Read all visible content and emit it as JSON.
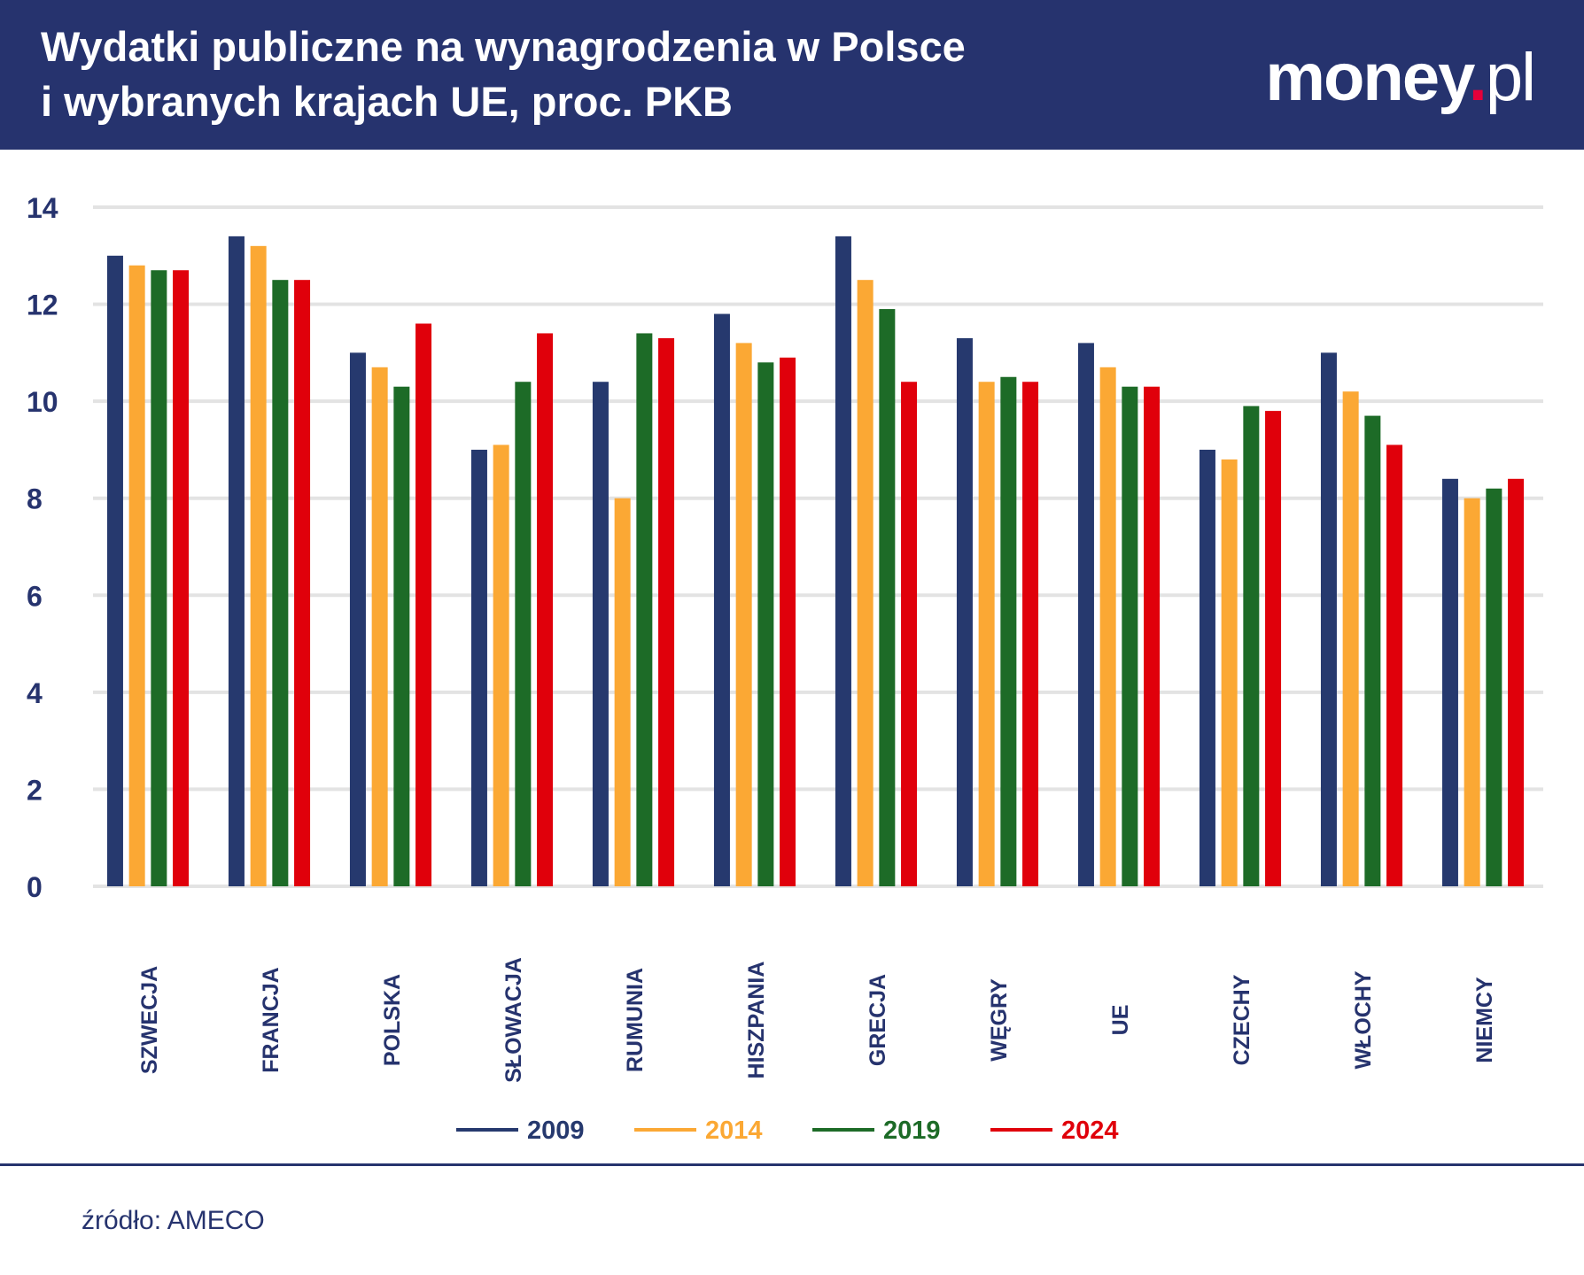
{
  "header": {
    "title": "Wydatki publiczne na wynagrodzenia w Polsce\ni wybranych krajach UE, proc. PKB",
    "logo": "money.pl"
  },
  "footer": {
    "source": "źródło: AMECO"
  },
  "chart_data": {
    "type": "bar",
    "title": "Wydatki publiczne na wynagrodzenia w Polsce i wybranych krajach UE, proc. PKB",
    "xlabel": "",
    "ylabel": "",
    "ylim": [
      0,
      14
    ],
    "yticks": [
      0,
      2,
      4,
      6,
      8,
      10,
      12,
      14
    ],
    "grid": true,
    "legend_position": "bottom",
    "categories": [
      "SZWECJA",
      "FRANCJA",
      "POLSKA",
      "SŁOWACJA",
      "RUMUNIA",
      "HISZPANIA",
      "GRECJA",
      "WĘGRY",
      "UE",
      "CZECHY",
      "WŁOCHY",
      "NIEMCY"
    ],
    "series": [
      {
        "name": "2009",
        "color": "#26396e",
        "values": [
          13.0,
          13.4,
          11.0,
          9.0,
          10.4,
          11.8,
          13.4,
          11.3,
          11.2,
          9.0,
          11.0,
          8.4
        ]
      },
      {
        "name": "2014",
        "color": "#fba834",
        "values": [
          12.8,
          13.2,
          10.7,
          9.1,
          8.0,
          11.2,
          12.5,
          10.4,
          10.7,
          8.8,
          10.2,
          8.0
        ]
      },
      {
        "name": "2019",
        "color": "#1d6b27",
        "values": [
          12.7,
          12.5,
          10.3,
          10.4,
          11.4,
          10.8,
          11.9,
          10.5,
          10.3,
          9.9,
          9.7,
          8.2
        ]
      },
      {
        "name": "2024",
        "color": "#e0000b",
        "values": [
          12.7,
          12.5,
          11.6,
          11.4,
          11.3,
          10.9,
          10.4,
          10.4,
          10.3,
          9.8,
          9.1,
          8.4
        ]
      }
    ]
  }
}
